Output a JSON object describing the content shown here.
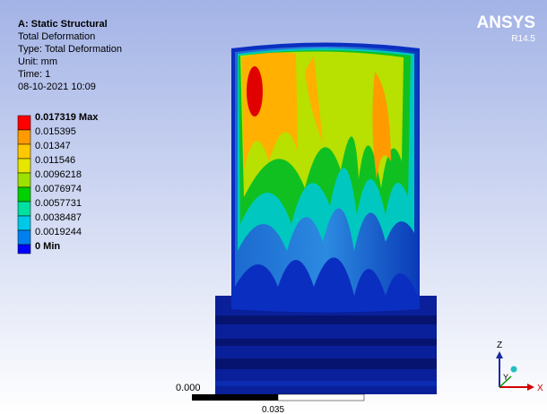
{
  "header": {
    "title": "A: Static Structural",
    "lines": [
      "Total Deformation",
      "Type: Total Deformation",
      "Unit: mm",
      "Time: 1",
      "08-10-2021 10:09"
    ]
  },
  "legend": {
    "entries": [
      "0.017319 Max",
      "0.015395",
      "0.01347",
      "0.011546",
      "0.0096218",
      "0.0076974",
      "0.0057731",
      "0.0038487",
      "0.0019244",
      "0 Min"
    ]
  },
  "logo": {
    "name": "ANSYS",
    "version": "R14.5"
  },
  "scale_bar": {
    "labels": [
      "0.000",
      "0.035"
    ]
  },
  "triad": {
    "labels": [
      "Z",
      "Y",
      "X"
    ]
  }
}
